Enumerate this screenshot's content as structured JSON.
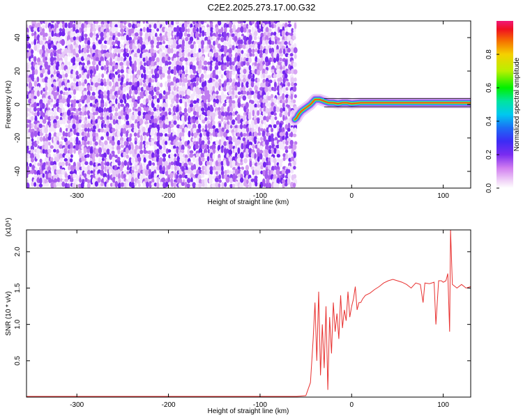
{
  "title": "C2E2.2025.273.17.00.G32",
  "chart_data": [
    {
      "type": "heatmap",
      "xlabel": "Height of straight line (km)",
      "ylabel": "Frequency (Hz)",
      "xlim": [
        -355,
        130
      ],
      "ylim": [
        -50,
        50
      ],
      "x_ticks": [
        -300,
        -200,
        -100,
        0,
        100
      ],
      "y_ticks": [
        -40,
        -20,
        0,
        20,
        40
      ],
      "noise_region_x": [
        -355,
        -62
      ],
      "signal_track": {
        "x": [
          -62,
          -60,
          -58,
          -55,
          -50,
          -45,
          -40,
          -35,
          -30,
          -25,
          -20,
          -15,
          -10,
          -5,
          0,
          10,
          20,
          30,
          40,
          60,
          80,
          100,
          105,
          110,
          120,
          130
        ],
        "y": [
          -9,
          -8,
          -6,
          -4,
          -2,
          0,
          3,
          3,
          2,
          1,
          1,
          0.5,
          1,
          1,
          0.5,
          1,
          1,
          1,
          1,
          1,
          1,
          1,
          1,
          1,
          1,
          1
        ]
      },
      "colorbar": {
        "label": "Normalized spectral amplitude",
        "range": [
          0,
          1
        ],
        "ticks": [
          "0.0",
          "0.2",
          "0.4",
          "0.6",
          "0.8"
        ]
      }
    },
    {
      "type": "line",
      "xlabel": "Height of straight line (km)",
      "ylabel": "SNR (10 * v/v)",
      "multiplier_label": "(x10⁴)",
      "xlim": [
        -355,
        130
      ],
      "ylim": [
        0,
        2.3
      ],
      "x_ticks": [
        -300,
        -200,
        -100,
        0,
        100
      ],
      "y_ticks": [
        0.5,
        1.0,
        1.5,
        2.0
      ],
      "series": [
        {
          "color": "#e8302f",
          "x": [
            -355,
            -300,
            -200,
            -100,
            -60,
            -50,
            -45,
            -42,
            -40,
            -38,
            -36,
            -34,
            -32,
            -30,
            -28,
            -26,
            -24,
            -22,
            -20,
            -18,
            -16,
            -14,
            -12,
            -10,
            -8,
            -6,
            -4,
            -2,
            0,
            2,
            4,
            6,
            8,
            10,
            12,
            15,
            20,
            25,
            30,
            35,
            40,
            45,
            50,
            55,
            60,
            65,
            70,
            75,
            78,
            80,
            85,
            90,
            92,
            95,
            98,
            100,
            103,
            105,
            107,
            108,
            110,
            115,
            120,
            125,
            130
          ],
          "y": [
            0.01,
            0.01,
            0.01,
            0.01,
            0.01,
            0.02,
            0.2,
            0.8,
            1.3,
            0.5,
            1.45,
            0.3,
            1.0,
            0.4,
            1.25,
            0.1,
            1.1,
            0.6,
            1.3,
            0.9,
            1.15,
            0.8,
            1.4,
            0.95,
            1.2,
            1.05,
            1.45,
            1.1,
            1.25,
            1.35,
            1.52,
            1.2,
            1.3,
            1.3,
            1.35,
            1.4,
            1.43,
            1.48,
            1.52,
            1.57,
            1.6,
            1.62,
            1.6,
            1.58,
            1.55,
            1.5,
            1.57,
            1.55,
            1.3,
            1.57,
            1.56,
            1.58,
            1.0,
            1.6,
            1.6,
            1.58,
            1.6,
            1.7,
            0.9,
            2.3,
            1.55,
            1.5,
            1.55,
            1.5,
            1.52
          ]
        }
      ]
    }
  ]
}
